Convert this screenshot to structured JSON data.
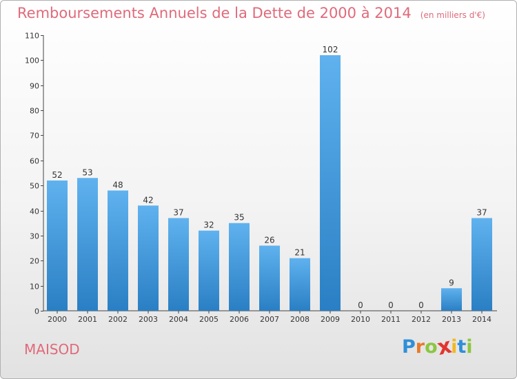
{
  "header": {
    "title": "Remboursements Annuels de la Dette de 2000 à 2014",
    "unit": "(en milliers d'€)"
  },
  "footer": {
    "commune": "MAISOD",
    "brand": "Proxiti"
  },
  "brand_letters": [
    {
      "char": "P",
      "color": "#2f8fd8"
    },
    {
      "char": "r",
      "color": "#e8792a"
    },
    {
      "char": "o",
      "color": "#8cc63f"
    },
    {
      "char": "x",
      "color": "#e3352f"
    },
    {
      "char": "i",
      "color": "#f2b824"
    },
    {
      "char": "t",
      "color": "#2f8fd8"
    },
    {
      "char": "i",
      "color": "#8cc63f"
    }
  ],
  "chart_data": {
    "type": "bar",
    "title": "Remboursements Annuels de la Dette de 2000 à 2014",
    "subtitle": "(en milliers d'€)",
    "xlabel": "",
    "ylabel": "",
    "categories": [
      "2000",
      "2001",
      "2002",
      "2003",
      "2004",
      "2005",
      "2006",
      "2007",
      "2008",
      "2009",
      "2010",
      "2011",
      "2012",
      "2013",
      "2014"
    ],
    "values": [
      52,
      53,
      48,
      42,
      37,
      32,
      35,
      26,
      21,
      102,
      0,
      0,
      0,
      9,
      37
    ],
    "ylim": [
      0,
      110
    ],
    "yticks": [
      0,
      10,
      20,
      30,
      40,
      50,
      60,
      70,
      80,
      90,
      100,
      110
    ],
    "grid": false,
    "bar_color": "#4da3e6"
  }
}
